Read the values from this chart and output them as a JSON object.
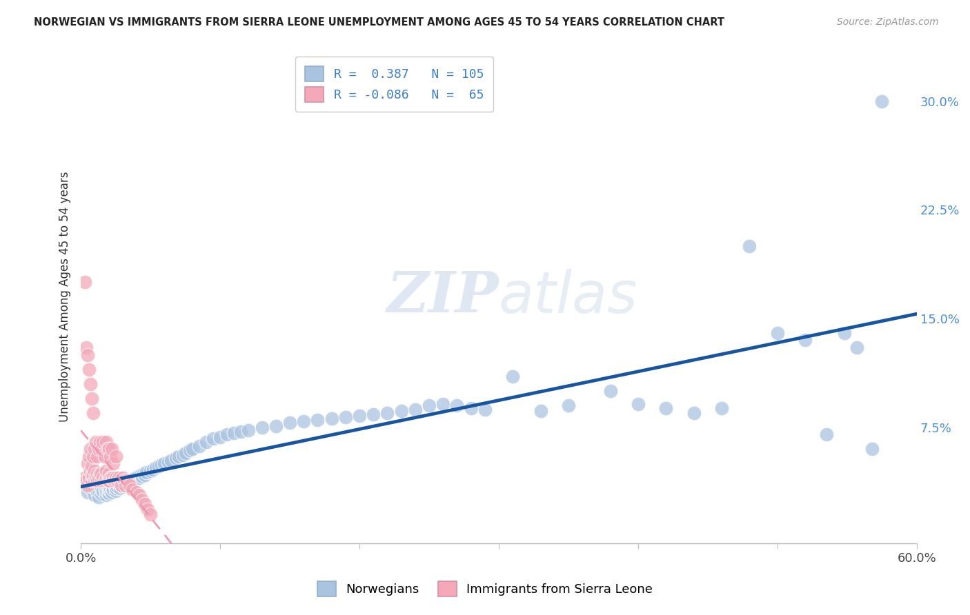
{
  "title": "NORWEGIAN VS IMMIGRANTS FROM SIERRA LEONE UNEMPLOYMENT AMONG AGES 45 TO 54 YEARS CORRELATION CHART",
  "source": "Source: ZipAtlas.com",
  "ylabel": "Unemployment Among Ages 45 to 54 years",
  "xlim": [
    0.0,
    0.6
  ],
  "ylim": [
    -0.005,
    0.335
  ],
  "xticks": [
    0.0,
    0.1,
    0.2,
    0.3,
    0.4,
    0.5,
    0.6
  ],
  "xticklabels": [
    "0.0%",
    "",
    "",
    "",
    "",
    "",
    "60.0%"
  ],
  "yticks_right": [
    0.075,
    0.15,
    0.225,
    0.3
  ],
  "yticklabels_right": [
    "7.5%",
    "15.0%",
    "22.5%",
    "30.0%"
  ],
  "blue_R": 0.387,
  "blue_N": 105,
  "pink_R": -0.086,
  "pink_N": 65,
  "blue_color": "#aac4e0",
  "pink_color": "#f4a8b8",
  "blue_line_color": "#1855a0",
  "pink_line_color": "#f090a8",
  "watermark_color": "#c8d8ea",
  "grid_color": "#d0d0d0",
  "norwegians_x": [
    0.005,
    0.008,
    0.01,
    0.01,
    0.012,
    0.013,
    0.013,
    0.015,
    0.015,
    0.015,
    0.016,
    0.017,
    0.018,
    0.018,
    0.018,
    0.019,
    0.02,
    0.02,
    0.02,
    0.021,
    0.021,
    0.022,
    0.022,
    0.023,
    0.024,
    0.025,
    0.025,
    0.026,
    0.027,
    0.028,
    0.029,
    0.03,
    0.03,
    0.031,
    0.032,
    0.033,
    0.034,
    0.035,
    0.036,
    0.037,
    0.038,
    0.039,
    0.04,
    0.041,
    0.042,
    0.043,
    0.044,
    0.045,
    0.046,
    0.047,
    0.05,
    0.052,
    0.054,
    0.056,
    0.058,
    0.06,
    0.063,
    0.065,
    0.068,
    0.07,
    0.073,
    0.075,
    0.078,
    0.08,
    0.085,
    0.09,
    0.095,
    0.1,
    0.105,
    0.11,
    0.115,
    0.12,
    0.13,
    0.14,
    0.15,
    0.16,
    0.17,
    0.18,
    0.19,
    0.2,
    0.21,
    0.22,
    0.23,
    0.24,
    0.25,
    0.26,
    0.27,
    0.28,
    0.29,
    0.31,
    0.33,
    0.35,
    0.38,
    0.4,
    0.42,
    0.44,
    0.46,
    0.48,
    0.5,
    0.52,
    0.535,
    0.548,
    0.557,
    0.568,
    0.575
  ],
  "norwegians_y": [
    0.03,
    0.032,
    0.028,
    0.033,
    0.03,
    0.027,
    0.031,
    0.029,
    0.032,
    0.034,
    0.031,
    0.033,
    0.028,
    0.031,
    0.035,
    0.03,
    0.029,
    0.032,
    0.034,
    0.031,
    0.033,
    0.03,
    0.034,
    0.032,
    0.035,
    0.031,
    0.033,
    0.034,
    0.036,
    0.033,
    0.035,
    0.034,
    0.037,
    0.035,
    0.036,
    0.037,
    0.036,
    0.038,
    0.037,
    0.039,
    0.038,
    0.04,
    0.039,
    0.041,
    0.04,
    0.042,
    0.041,
    0.043,
    0.042,
    0.044,
    0.045,
    0.046,
    0.047,
    0.048,
    0.049,
    0.05,
    0.051,
    0.052,
    0.054,
    0.055,
    0.056,
    0.057,
    0.059,
    0.06,
    0.062,
    0.065,
    0.067,
    0.068,
    0.07,
    0.071,
    0.072,
    0.073,
    0.075,
    0.076,
    0.078,
    0.079,
    0.08,
    0.081,
    0.082,
    0.083,
    0.084,
    0.085,
    0.086,
    0.087,
    0.09,
    0.091,
    0.09,
    0.088,
    0.087,
    0.11,
    0.086,
    0.09,
    0.1,
    0.091,
    0.088,
    0.085,
    0.088,
    0.2,
    0.14,
    0.135,
    0.07,
    0.14,
    0.13,
    0.06,
    0.3
  ],
  "sierraleon_x": [
    0.003,
    0.004,
    0.005,
    0.005,
    0.006,
    0.006,
    0.007,
    0.007,
    0.008,
    0.008,
    0.008,
    0.009,
    0.009,
    0.01,
    0.01,
    0.01,
    0.011,
    0.011,
    0.012,
    0.012,
    0.012,
    0.013,
    0.013,
    0.014,
    0.014,
    0.015,
    0.015,
    0.015,
    0.016,
    0.016,
    0.017,
    0.017,
    0.018,
    0.018,
    0.018,
    0.019,
    0.019,
    0.02,
    0.02,
    0.02,
    0.021,
    0.021,
    0.022,
    0.022,
    0.023,
    0.023,
    0.024,
    0.025,
    0.025,
    0.026,
    0.027,
    0.028,
    0.029,
    0.03,
    0.031,
    0.032,
    0.033,
    0.035,
    0.037,
    0.04,
    0.042,
    0.044,
    0.046,
    0.048,
    0.05
  ],
  "sierraleon_y": [
    0.04,
    0.038,
    0.035,
    0.05,
    0.04,
    0.055,
    0.045,
    0.06,
    0.038,
    0.042,
    0.048,
    0.042,
    0.055,
    0.038,
    0.045,
    0.06,
    0.04,
    0.065,
    0.038,
    0.043,
    0.055,
    0.04,
    0.06,
    0.043,
    0.065,
    0.038,
    0.043,
    0.06,
    0.04,
    0.065,
    0.038,
    0.055,
    0.04,
    0.045,
    0.065,
    0.038,
    0.06,
    0.038,
    0.043,
    0.06,
    0.04,
    0.055,
    0.04,
    0.06,
    0.04,
    0.05,
    0.038,
    0.04,
    0.055,
    0.038,
    0.04,
    0.038,
    0.035,
    0.04,
    0.038,
    0.035,
    0.038,
    0.035,
    0.032,
    0.03,
    0.028,
    0.025,
    0.022,
    0.018,
    0.015
  ],
  "sierraleon_outliers_x": [
    0.003,
    0.004,
    0.005,
    0.006,
    0.007,
    0.008,
    0.009
  ],
  "sierraleon_outliers_y": [
    0.175,
    0.13,
    0.125,
    0.115,
    0.105,
    0.095,
    0.085
  ]
}
